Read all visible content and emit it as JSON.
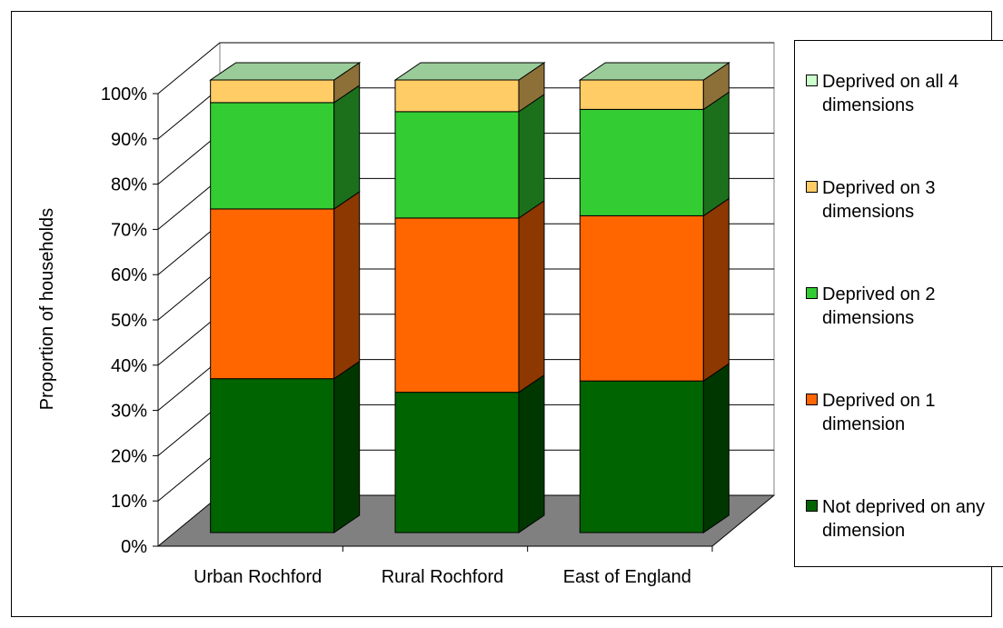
{
  "chart_data": {
    "type": "bar",
    "stacked": true,
    "three_d": true,
    "categories": [
      "Urban Rochford",
      "Rural Rochford",
      "East of England"
    ],
    "series": [
      {
        "name": "Not deprived on any dimension",
        "values": [
          34,
          31,
          33.5
        ],
        "color": "#006400"
      },
      {
        "name": "Deprived on 1 dimension",
        "values": [
          37.5,
          38.5,
          36.5
        ],
        "color": "#FF6600"
      },
      {
        "name": "Deprived on 2 dimensions",
        "values": [
          23.5,
          23.5,
          23.5
        ],
        "color": "#33CC33"
      },
      {
        "name": "Deprived on 3 dimensions",
        "values": [
          5,
          7,
          6.5
        ],
        "color": "#FFCC66"
      },
      {
        "name": "Deprived on all 4 dimensions",
        "values": [
          0,
          0,
          0
        ],
        "color": "#CCFFCC"
      }
    ],
    "xlabel": "",
    "ylabel": "Proportion of households",
    "ylim": [
      0,
      100
    ],
    "ytick_labels": [
      "0%",
      "10%",
      "20%",
      "30%",
      "40%",
      "50%",
      "60%",
      "70%",
      "80%",
      "90%",
      "100%"
    ],
    "grid": true,
    "legend_position": "right",
    "colors": {
      "floor": "#808080",
      "top_face": "#99CC99",
      "gridline": "#000000"
    }
  }
}
